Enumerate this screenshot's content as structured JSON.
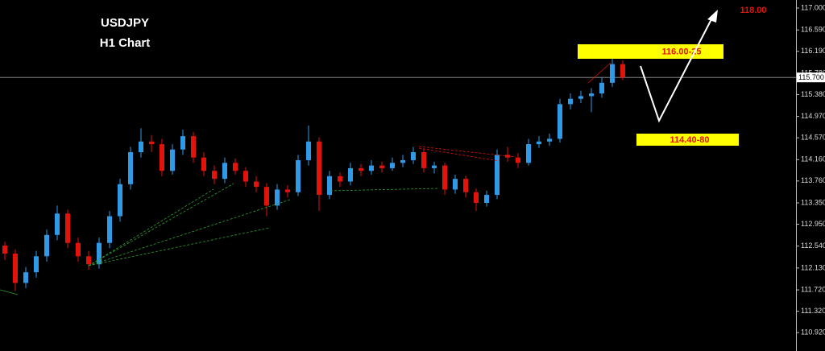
{
  "chart_data": {
    "type": "candlestick",
    "title": "USDJPY",
    "subtitle": "H1 Chart",
    "up_color": "#2f9be8",
    "down_color": "#e3120b",
    "ylim": [
      110.575,
      117.151
    ],
    "yticks": [
      {
        "value": 117.0,
        "label": "117.000"
      },
      {
        "value": 116.59,
        "label": "116.590"
      },
      {
        "value": 116.19,
        "label": "116.190"
      },
      {
        "value": 115.78,
        "label": "115.780"
      },
      {
        "value": 115.38,
        "label": "115.380"
      },
      {
        "value": 114.97,
        "label": "114.970"
      },
      {
        "value": 114.57,
        "label": "114.570"
      },
      {
        "value": 114.16,
        "label": "114.160"
      },
      {
        "value": 113.76,
        "label": "113.760"
      },
      {
        "value": 113.35,
        "label": "113.350"
      },
      {
        "value": 112.95,
        "label": "112.950"
      },
      {
        "value": 112.54,
        "label": "112.540"
      },
      {
        "value": 112.13,
        "label": "112.130"
      },
      {
        "value": 111.72,
        "label": "111.720"
      },
      {
        "value": 111.32,
        "label": "111.320"
      },
      {
        "value": 110.92,
        "label": "110.920"
      }
    ],
    "current_price": {
      "value": 115.7,
      "label": "115.700"
    },
    "annotations": {
      "resistance": "116.00-25",
      "support": "114.40-80",
      "target": "118.00"
    },
    "ohlc": [
      [
        112.55,
        112.62,
        112.28,
        112.4
      ],
      [
        112.4,
        112.48,
        111.7,
        111.85
      ],
      [
        111.85,
        112.15,
        111.75,
        112.05
      ],
      [
        112.05,
        112.45,
        111.95,
        112.35
      ],
      [
        112.35,
        112.85,
        112.25,
        112.75
      ],
      [
        112.75,
        113.3,
        112.65,
        113.15
      ],
      [
        113.15,
        113.22,
        112.5,
        112.6
      ],
      [
        112.6,
        112.7,
        112.25,
        112.35
      ],
      [
        112.35,
        112.45,
        112.1,
        112.2
      ],
      [
        112.2,
        112.7,
        112.12,
        112.6
      ],
      [
        112.6,
        113.2,
        112.5,
        113.1
      ],
      [
        113.1,
        113.8,
        113.0,
        113.7
      ],
      [
        113.7,
        114.4,
        113.6,
        114.3
      ],
      [
        114.3,
        114.75,
        114.2,
        114.5
      ],
      [
        114.5,
        114.62,
        114.3,
        114.45
      ],
      [
        114.45,
        114.55,
        113.85,
        113.95
      ],
      [
        113.95,
        114.45,
        113.88,
        114.35
      ],
      [
        114.35,
        114.72,
        114.25,
        114.6
      ],
      [
        114.6,
        114.68,
        114.1,
        114.2
      ],
      [
        114.2,
        114.3,
        113.85,
        113.95
      ],
      [
        113.95,
        114.05,
        113.7,
        113.8
      ],
      [
        113.8,
        114.2,
        113.72,
        114.1
      ],
      [
        114.1,
        114.18,
        113.88,
        113.95
      ],
      [
        113.95,
        114.02,
        113.65,
        113.75
      ],
      [
        113.75,
        113.85,
        113.55,
        113.65
      ],
      [
        113.65,
        113.72,
        113.1,
        113.3
      ],
      [
        113.3,
        113.7,
        113.22,
        113.6
      ],
      [
        113.6,
        113.68,
        113.45,
        113.55
      ],
      [
        113.55,
        114.25,
        113.48,
        114.15
      ],
      [
        114.15,
        114.8,
        114.05,
        114.5
      ],
      [
        114.5,
        114.58,
        113.2,
        113.5
      ],
      [
        113.5,
        113.95,
        113.42,
        113.85
      ],
      [
        113.85,
        113.92,
        113.65,
        113.75
      ],
      [
        113.75,
        114.1,
        113.68,
        114.0
      ],
      [
        114.0,
        114.08,
        113.85,
        113.95
      ],
      [
        113.95,
        114.15,
        113.88,
        114.05
      ],
      [
        114.05,
        114.12,
        113.92,
        114.0
      ],
      [
        114.0,
        114.2,
        113.95,
        114.1
      ],
      [
        114.1,
        114.25,
        114.02,
        114.15
      ],
      [
        114.15,
        114.4,
        114.08,
        114.3
      ],
      [
        114.3,
        114.36,
        113.92,
        114.0
      ],
      [
        114.0,
        114.12,
        113.9,
        114.05
      ],
      [
        114.05,
        114.1,
        113.5,
        113.6
      ],
      [
        113.6,
        113.88,
        113.52,
        113.8
      ],
      [
        113.8,
        113.86,
        113.45,
        113.55
      ],
      [
        113.55,
        113.62,
        113.2,
        113.35
      ],
      [
        113.35,
        113.58,
        113.28,
        113.5
      ],
      [
        113.5,
        114.35,
        113.42,
        114.25
      ],
      [
        114.25,
        114.4,
        114.12,
        114.2
      ],
      [
        114.2,
        114.28,
        114.0,
        114.1
      ],
      [
        114.1,
        114.55,
        114.05,
        114.45
      ],
      [
        114.45,
        114.6,
        114.38,
        114.5
      ],
      [
        114.5,
        114.65,
        114.42,
        114.55
      ],
      [
        114.55,
        115.3,
        114.48,
        115.2
      ],
      [
        115.2,
        115.4,
        115.1,
        115.3
      ],
      [
        115.3,
        115.45,
        115.22,
        115.35
      ],
      [
        115.35,
        115.5,
        115.05,
        115.4
      ],
      [
        115.4,
        115.7,
        115.32,
        115.6
      ],
      [
        115.6,
        116.1,
        115.52,
        115.95
      ],
      [
        115.95,
        116.02,
        115.65,
        115.7
      ]
    ]
  }
}
